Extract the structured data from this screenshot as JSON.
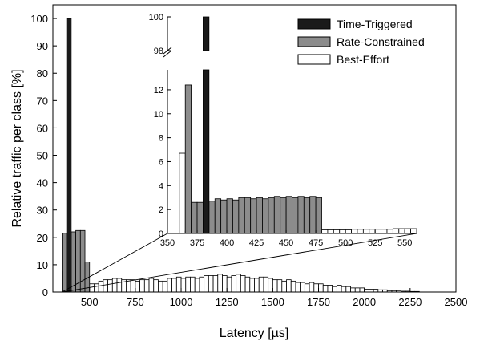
{
  "chart_data": {
    "type": "bar",
    "xlabel": "Latency [µs]",
    "ylabel": "Relative traffic per class [%]",
    "xlim": [
      300,
      2500
    ],
    "ylim": [
      0,
      105
    ],
    "xticks": [
      500,
      750,
      1000,
      1250,
      1500,
      1750,
      2000,
      2250,
      2500
    ],
    "yticks": [
      0,
      10,
      20,
      30,
      40,
      50,
      60,
      70,
      80,
      90,
      100
    ],
    "legend_position": "top-right",
    "colors": {
      "time_triggered": "#1a1a1a",
      "rate_constrained": "#8c8c8c",
      "best_effort": "#ffffff"
    },
    "series": [
      {
        "name": "Time-Triggered",
        "bin_width": 25,
        "x": [
          375
        ],
        "values": [
          100
        ]
      },
      {
        "name": "Rate-Constrained",
        "bin_width": 25,
        "x": [
          350,
          375,
          400,
          425,
          450,
          475
        ],
        "values": [
          21.5,
          21.5,
          22,
          22.5,
          22.5,
          11
        ]
      },
      {
        "name": "Best-Effort",
        "bin_width": 25,
        "x": [
          350,
          375,
          400,
          425,
          450,
          475,
          500,
          525,
          550,
          575,
          600,
          625,
          650,
          675,
          700,
          725,
          750,
          775,
          800,
          825,
          850,
          875,
          900,
          925,
          950,
          975,
          1000,
          1025,
          1050,
          1075,
          1100,
          1125,
          1150,
          1175,
          1200,
          1225,
          1250,
          1275,
          1300,
          1325,
          1350,
          1375,
          1400,
          1425,
          1450,
          1475,
          1500,
          1525,
          1550,
          1575,
          1600,
          1625,
          1650,
          1675,
          1700,
          1725,
          1750,
          1775,
          1800,
          1825,
          1850,
          1875,
          1900,
          1925,
          1950,
          1975,
          2000,
          2025,
          2050,
          2075,
          2100,
          2125,
          2150,
          2175,
          2200,
          2225,
          2250,
          2275
        ],
        "values": [
          7.5,
          2.5,
          3,
          3,
          3,
          3,
          3,
          3,
          4,
          4.5,
          4.5,
          5,
          5,
          4.5,
          4.5,
          4.5,
          4,
          4.5,
          4.5,
          5,
          4.5,
          4,
          4,
          5,
          5,
          5.5,
          5,
          5.5,
          5.5,
          5,
          5.5,
          6,
          6,
          6,
          6.5,
          6,
          5.5,
          6,
          6.5,
          6,
          5.5,
          5,
          5,
          5.5,
          5.5,
          5,
          4.5,
          4.5,
          4,
          4.5,
          4,
          3.5,
          3.5,
          3,
          3.5,
          3,
          3,
          2.5,
          2.5,
          2,
          2.5,
          2,
          2,
          1.5,
          1.5,
          1.5,
          1,
          1,
          1,
          0.8,
          0.8,
          0.5,
          0.5,
          0.5,
          0.3,
          0.3,
          0.2,
          0.2
        ]
      }
    ],
    "inset": {
      "xlim": [
        350,
        560
      ],
      "lower_ylim": [
        0,
        13
      ],
      "upper_ylim": [
        98,
        100
      ],
      "xticks": [
        350,
        375,
        400,
        425,
        450,
        475,
        500,
        525,
        550
      ],
      "lower_yticks": [
        0,
        2,
        4,
        6,
        8,
        10,
        12
      ],
      "upper_yticks": [
        98,
        100
      ],
      "bin_width": 5,
      "series": [
        {
          "name": "Time-Triggered",
          "x": [
            380
          ],
          "values": [
            100
          ]
        },
        {
          "name": "Rate-Constrained",
          "x": [
            365,
            370,
            375,
            385,
            390,
            395,
            400,
            405,
            410,
            415,
            420,
            425,
            430,
            435,
            440,
            445,
            450,
            455,
            460,
            465,
            470,
            475
          ],
          "values": [
            12.4,
            2.6,
            2.6,
            2.7,
            2.9,
            2.8,
            2.9,
            2.8,
            3.0,
            3.0,
            2.9,
            3.0,
            2.9,
            3.0,
            3.1,
            3.0,
            3.1,
            3.0,
            3.1,
            3.0,
            3.1,
            3.0
          ]
        },
        {
          "name": "Best-Effort",
          "x": [
            360,
            365,
            370,
            375,
            380,
            385,
            390,
            395,
            400,
            405,
            410,
            415,
            420,
            425,
            430,
            435,
            440,
            445,
            450,
            455,
            460,
            465,
            470,
            475,
            480,
            485,
            490,
            495,
            500,
            505,
            510,
            515,
            520,
            525,
            530,
            535,
            540,
            545,
            550,
            555
          ],
          "values": [
            6.7,
            0.2,
            0.15,
            0.15,
            0.15,
            0.15,
            0.15,
            0.2,
            0.2,
            0.2,
            0.2,
            0.2,
            0.25,
            0.25,
            0.25,
            0.25,
            0.25,
            0.25,
            0.25,
            0.25,
            0.25,
            0.25,
            0.25,
            0.25,
            0.3,
            0.3,
            0.3,
            0.3,
            0.3,
            0.35,
            0.35,
            0.35,
            0.35,
            0.35,
            0.35,
            0.35,
            0.4,
            0.4,
            0.4,
            0.4
          ]
        }
      ]
    }
  }
}
